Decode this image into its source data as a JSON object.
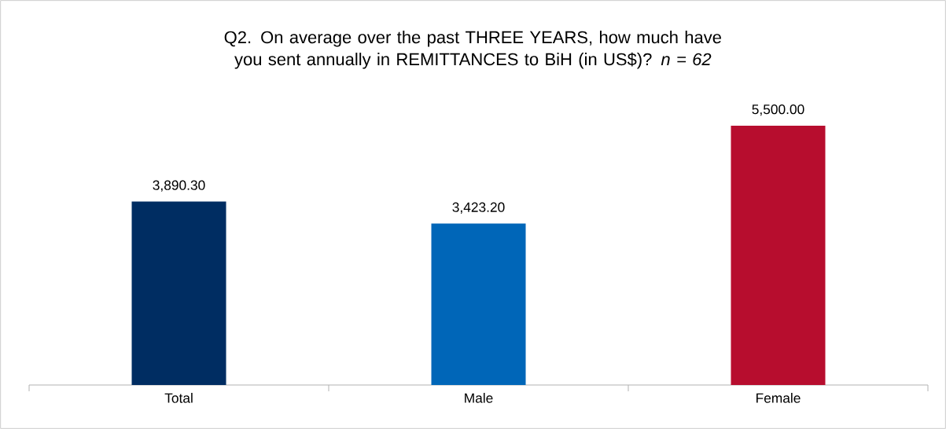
{
  "chart_data": {
    "type": "bar",
    "title": "Q2. On average over the past THREE YEARS, how much have you sent annually in REMITTANCES to BiH (in US$)? *n = 62*",
    "categories": [
      "Total",
      "Male",
      "Female"
    ],
    "values": [
      3890.3,
      3423.2,
      5500.0
    ],
    "colors": [
      "#002d62",
      "#0066b8",
      "#b70d2e"
    ],
    "value_labels": [
      "3,890.30",
      "3,423.20",
      "5,500.00"
    ]
  }
}
